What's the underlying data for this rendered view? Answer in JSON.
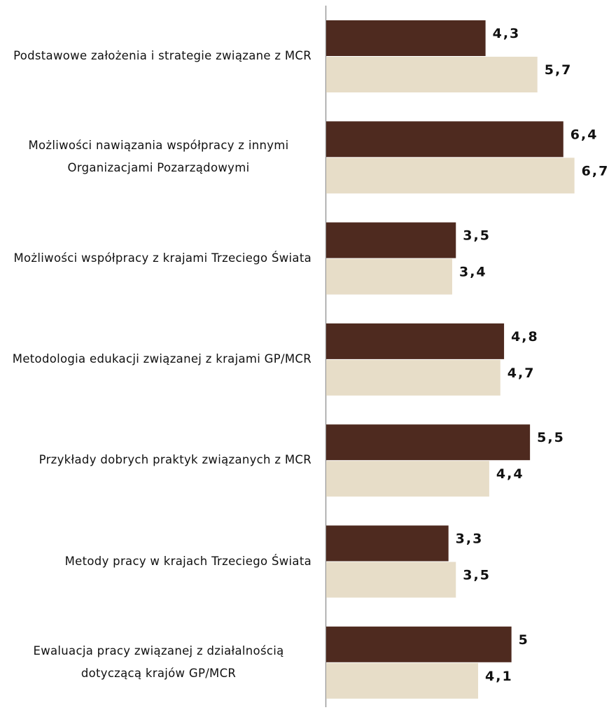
{
  "chart_data": {
    "type": "bar",
    "orientation": "horizontal",
    "categories": [
      "Podstawowe założenia i strategie związane z MCR",
      "Możliwości nawiązania współpracy z innymi Organizacjami Pozarządowymi",
      "Możliwości współpracy z krajami Trzeciego Świata",
      "Metodologia edukacji związanej z krajami GP/MCR",
      "Przykłady dobrych praktyk związanych z MCR",
      "Metody pracy w krajach Trzeciego Świata",
      "Ewaluacja pracy związanej z działalnością dotyczącą krajów GP/MCR"
    ],
    "series": [
      {
        "color": "#4e2a1f",
        "values": [
          4.3,
          6.4,
          3.5,
          4.8,
          5.5,
          3.3,
          5
        ],
        "value_labels": [
          "4,3",
          "6,4",
          "3,5",
          "4,8",
          "5,5",
          "3,3",
          "5"
        ]
      },
      {
        "color": "#e7ddc8",
        "values": [
          5.7,
          6.7,
          3.4,
          4.7,
          4.4,
          3.5,
          4.1
        ],
        "value_labels": [
          "5,7",
          "6,7",
          "3,4",
          "4,7",
          "4,4",
          "3,5",
          "4,1"
        ]
      }
    ],
    "xlim": [
      0,
      7.5
    ]
  }
}
